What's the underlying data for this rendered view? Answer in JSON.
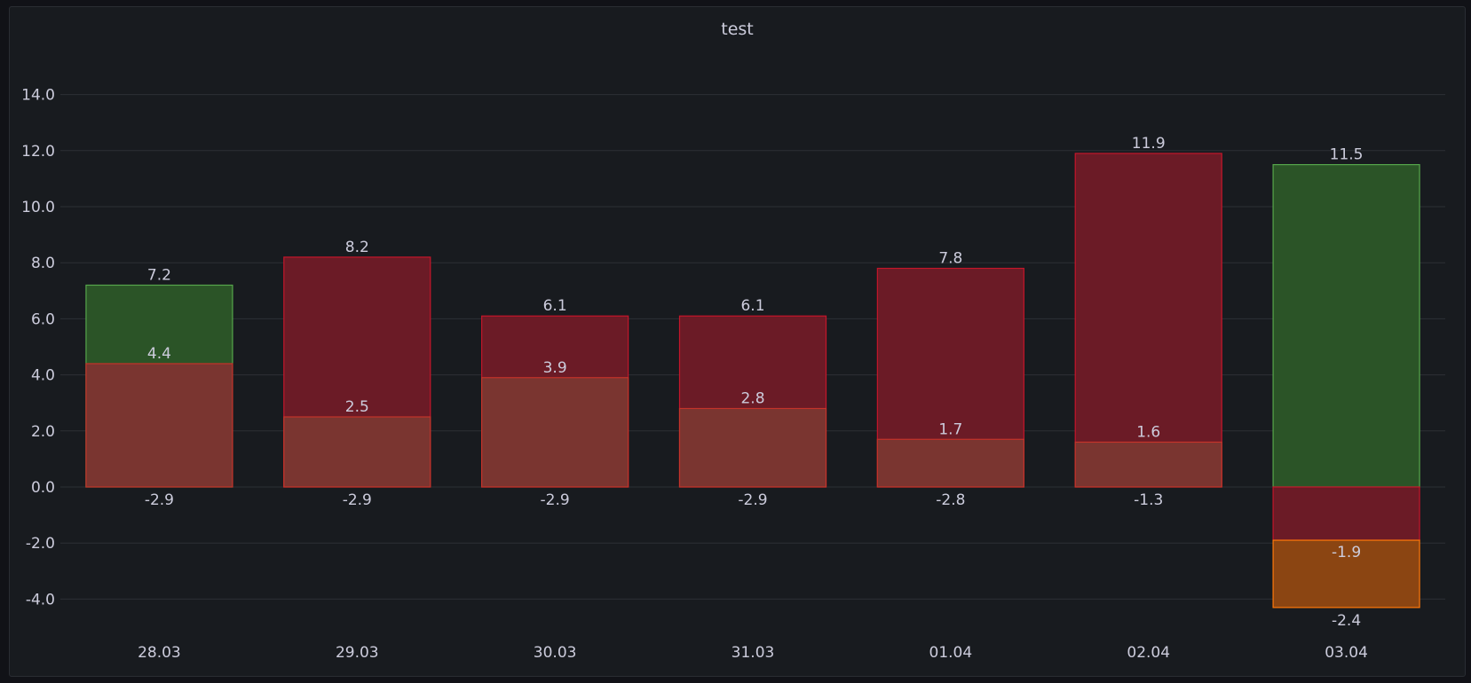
{
  "panel": {
    "title": "test"
  },
  "colors": {
    "background": "#181b1f",
    "grid": "#2c3035",
    "green_fill": "#2b5427",
    "green_stroke": "#56a64b",
    "red_fill": "#6b1b26",
    "red_stroke": "#c4162a",
    "brown_fill": "#7a3530",
    "brown_stroke": "#c4332a",
    "orange_fill": "#8b4512",
    "orange_stroke": "#ff780a"
  },
  "chart_data": {
    "type": "bar",
    "stacked": false,
    "title": "test",
    "categories": [
      "28.03",
      "29.03",
      "30.03",
      "31.03",
      "01.04",
      "02.04",
      "03.04"
    ],
    "y_ticks": [
      "14.0",
      "12.0",
      "10.0",
      "8.0",
      "6.0",
      "4.0",
      "2.0",
      "0.0",
      "-2.0",
      "-4.0"
    ],
    "ylim": [
      -5.3,
      15.4
    ],
    "grid": true,
    "legend": "none",
    "bars": [
      {
        "top": {
          "value": 7.2,
          "label": "7.2",
          "color": "green"
        },
        "inner": {
          "value": 4.4,
          "label": "4.4"
        },
        "neg": {
          "value": -2.9,
          "label": "-2.9"
        }
      },
      {
        "top": {
          "value": 8.2,
          "label": "8.2",
          "color": "red"
        },
        "inner": {
          "value": 2.5,
          "label": "2.5"
        },
        "neg": {
          "value": -2.9,
          "label": "-2.9"
        }
      },
      {
        "top": {
          "value": 6.1,
          "label": "6.1",
          "color": "red"
        },
        "inner": {
          "value": 3.9,
          "label": "3.9"
        },
        "neg": {
          "value": -2.9,
          "label": "-2.9"
        }
      },
      {
        "top": {
          "value": 6.1,
          "label": "6.1",
          "color": "red"
        },
        "inner": {
          "value": 2.8,
          "label": "2.8"
        },
        "neg": {
          "value": -2.9,
          "label": "-2.9"
        }
      },
      {
        "top": {
          "value": 7.8,
          "label": "7.8",
          "color": "red"
        },
        "inner": {
          "value": 1.7,
          "label": "1.7"
        },
        "neg": {
          "value": -2.8,
          "label": "-2.8"
        }
      },
      {
        "top": {
          "value": 11.9,
          "label": "11.9",
          "color": "red"
        },
        "inner": {
          "value": 1.6,
          "label": "1.6"
        },
        "neg": {
          "value": -1.3,
          "label": "-1.3"
        }
      },
      {
        "top": {
          "value": 11.5,
          "label": "11.5",
          "color": "green"
        },
        "neg_red": {
          "value": -1.9,
          "label": "-1.9"
        },
        "neg_orange": {
          "value": -4.3,
          "label": "-2.4"
        }
      }
    ]
  }
}
